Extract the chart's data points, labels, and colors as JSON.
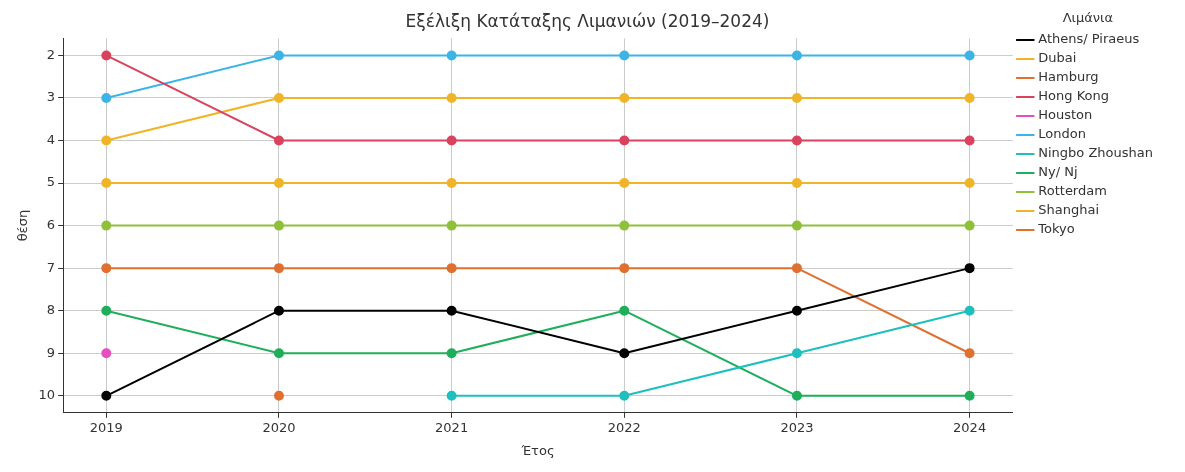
{
  "chart_data": {
    "type": "line",
    "title": "Εξέλιξη Κατάταξης Λιμανιών (2019–2024)",
    "xlabel": "Έτος",
    "ylabel": "θέση",
    "legend_title": "Λιμάνια",
    "x": [
      2019,
      2020,
      2021,
      2022,
      2023,
      2024
    ],
    "xlim": [
      2018.75,
      2024.25
    ],
    "xticks": [
      2019,
      2020,
      2021,
      2022,
      2023,
      2024
    ],
    "ylim": [
      10.4,
      1.6
    ],
    "yticks": [
      2,
      3,
      4,
      5,
      6,
      7,
      8,
      9,
      10
    ],
    "grid": true,
    "legend": "right",
    "marker": "circle",
    "line_style": "solid",
    "series": [
      {
        "name": "Athens/ Piraeus",
        "color": "#000000",
        "values": [
          10,
          8,
          8,
          9,
          8,
          7
        ]
      },
      {
        "name": "Dubai",
        "color": "#f0b429",
        "values": [
          5,
          5,
          5,
          5,
          5,
          5
        ]
      },
      {
        "name": "Hamburg",
        "color": "#e07030",
        "values": [
          null,
          10,
          null,
          null,
          null,
          null
        ]
      },
      {
        "name": "Hong Kong",
        "color": "#d9435e",
        "values": [
          2,
          4,
          4,
          4,
          4,
          4
        ]
      },
      {
        "name": "Houston",
        "color": "#e64fc0",
        "values": [
          9,
          null,
          null,
          null,
          null,
          null
        ]
      },
      {
        "name": "London",
        "color": "#3cb4e5",
        "values": [
          3,
          2,
          2,
          2,
          2,
          2
        ]
      },
      {
        "name": "Ningbo Zhoushan",
        "color": "#1fbfbf",
        "values": [
          null,
          null,
          10,
          10,
          9,
          8
        ]
      },
      {
        "name": "Ny/ Nj",
        "color": "#1fae5a",
        "values": [
          8,
          9,
          9,
          8,
          10,
          10
        ]
      },
      {
        "name": "Rotterdam",
        "color": "#8fc03a",
        "values": [
          6,
          6,
          6,
          6,
          6,
          6
        ]
      },
      {
        "name": "Shanghai",
        "color": "#f0b429",
        "values": [
          4,
          3,
          3,
          3,
          3,
          3
        ]
      },
      {
        "name": "Tokyo",
        "color": "#e07030",
        "values": [
          7,
          7,
          7,
          7,
          7,
          9
        ]
      }
    ]
  }
}
